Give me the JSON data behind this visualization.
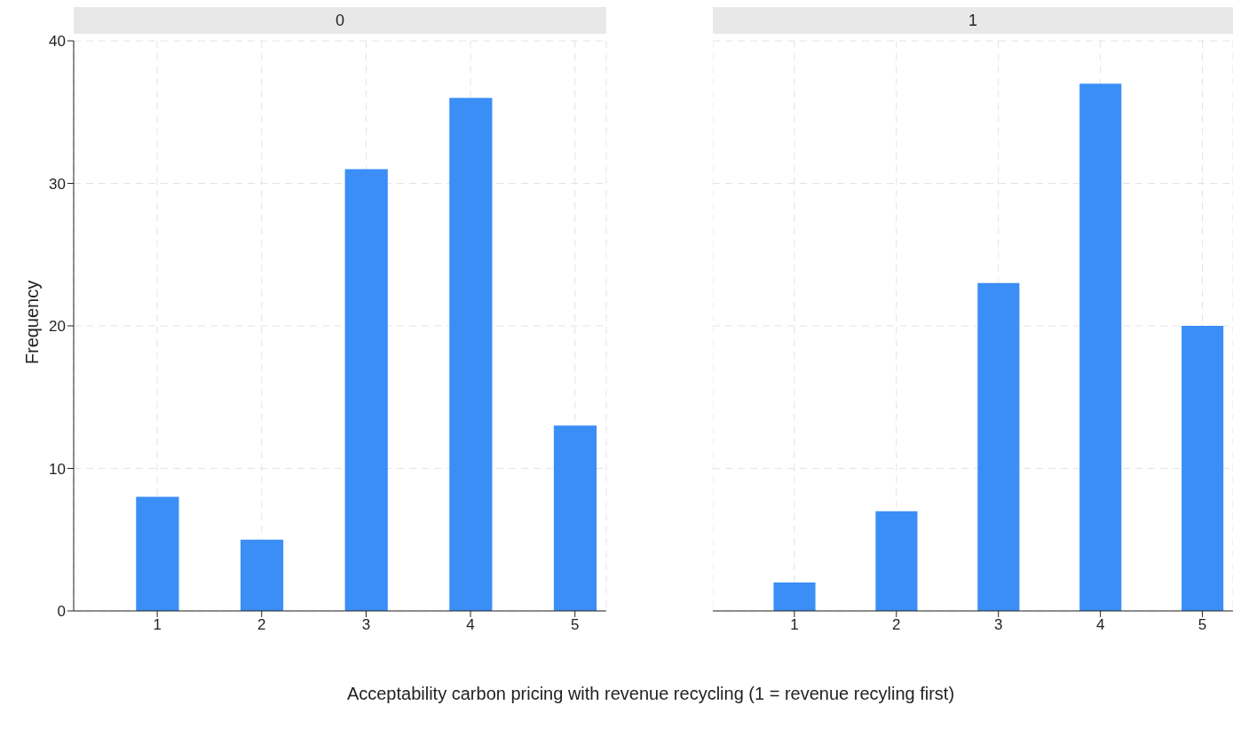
{
  "chart_data": [
    {
      "type": "bar",
      "title": "0",
      "ylabel": "Frequency",
      "xlabel": "Acceptability carbon pricing with revenue recycling (1 = revenue recyling first)",
      "x": [
        1,
        2,
        3,
        4,
        5
      ],
      "values": [
        8,
        5,
        31,
        36,
        13
      ],
      "color": "#3a8ef6",
      "xlim": [
        0.2,
        5.3
      ],
      "xticks": [
        1,
        2,
        3,
        4,
        5
      ],
      "ylim": [
        0,
        40
      ],
      "yticks": [
        0,
        10,
        20,
        30,
        40
      ],
      "grid": true
    },
    {
      "type": "bar",
      "title": "1",
      "x": [
        1,
        2,
        3,
        4,
        5
      ],
      "values": [
        2,
        7,
        23,
        37,
        20
      ],
      "color": "#3a8ef6",
      "xlim": [
        0.2,
        5.3
      ],
      "xticks": [
        1,
        2,
        3,
        4,
        5
      ],
      "ylim": [
        0,
        40
      ],
      "yticks": [
        0,
        10,
        20,
        30,
        40
      ],
      "grid": true,
      "tick_labels": "x"
    }
  ]
}
